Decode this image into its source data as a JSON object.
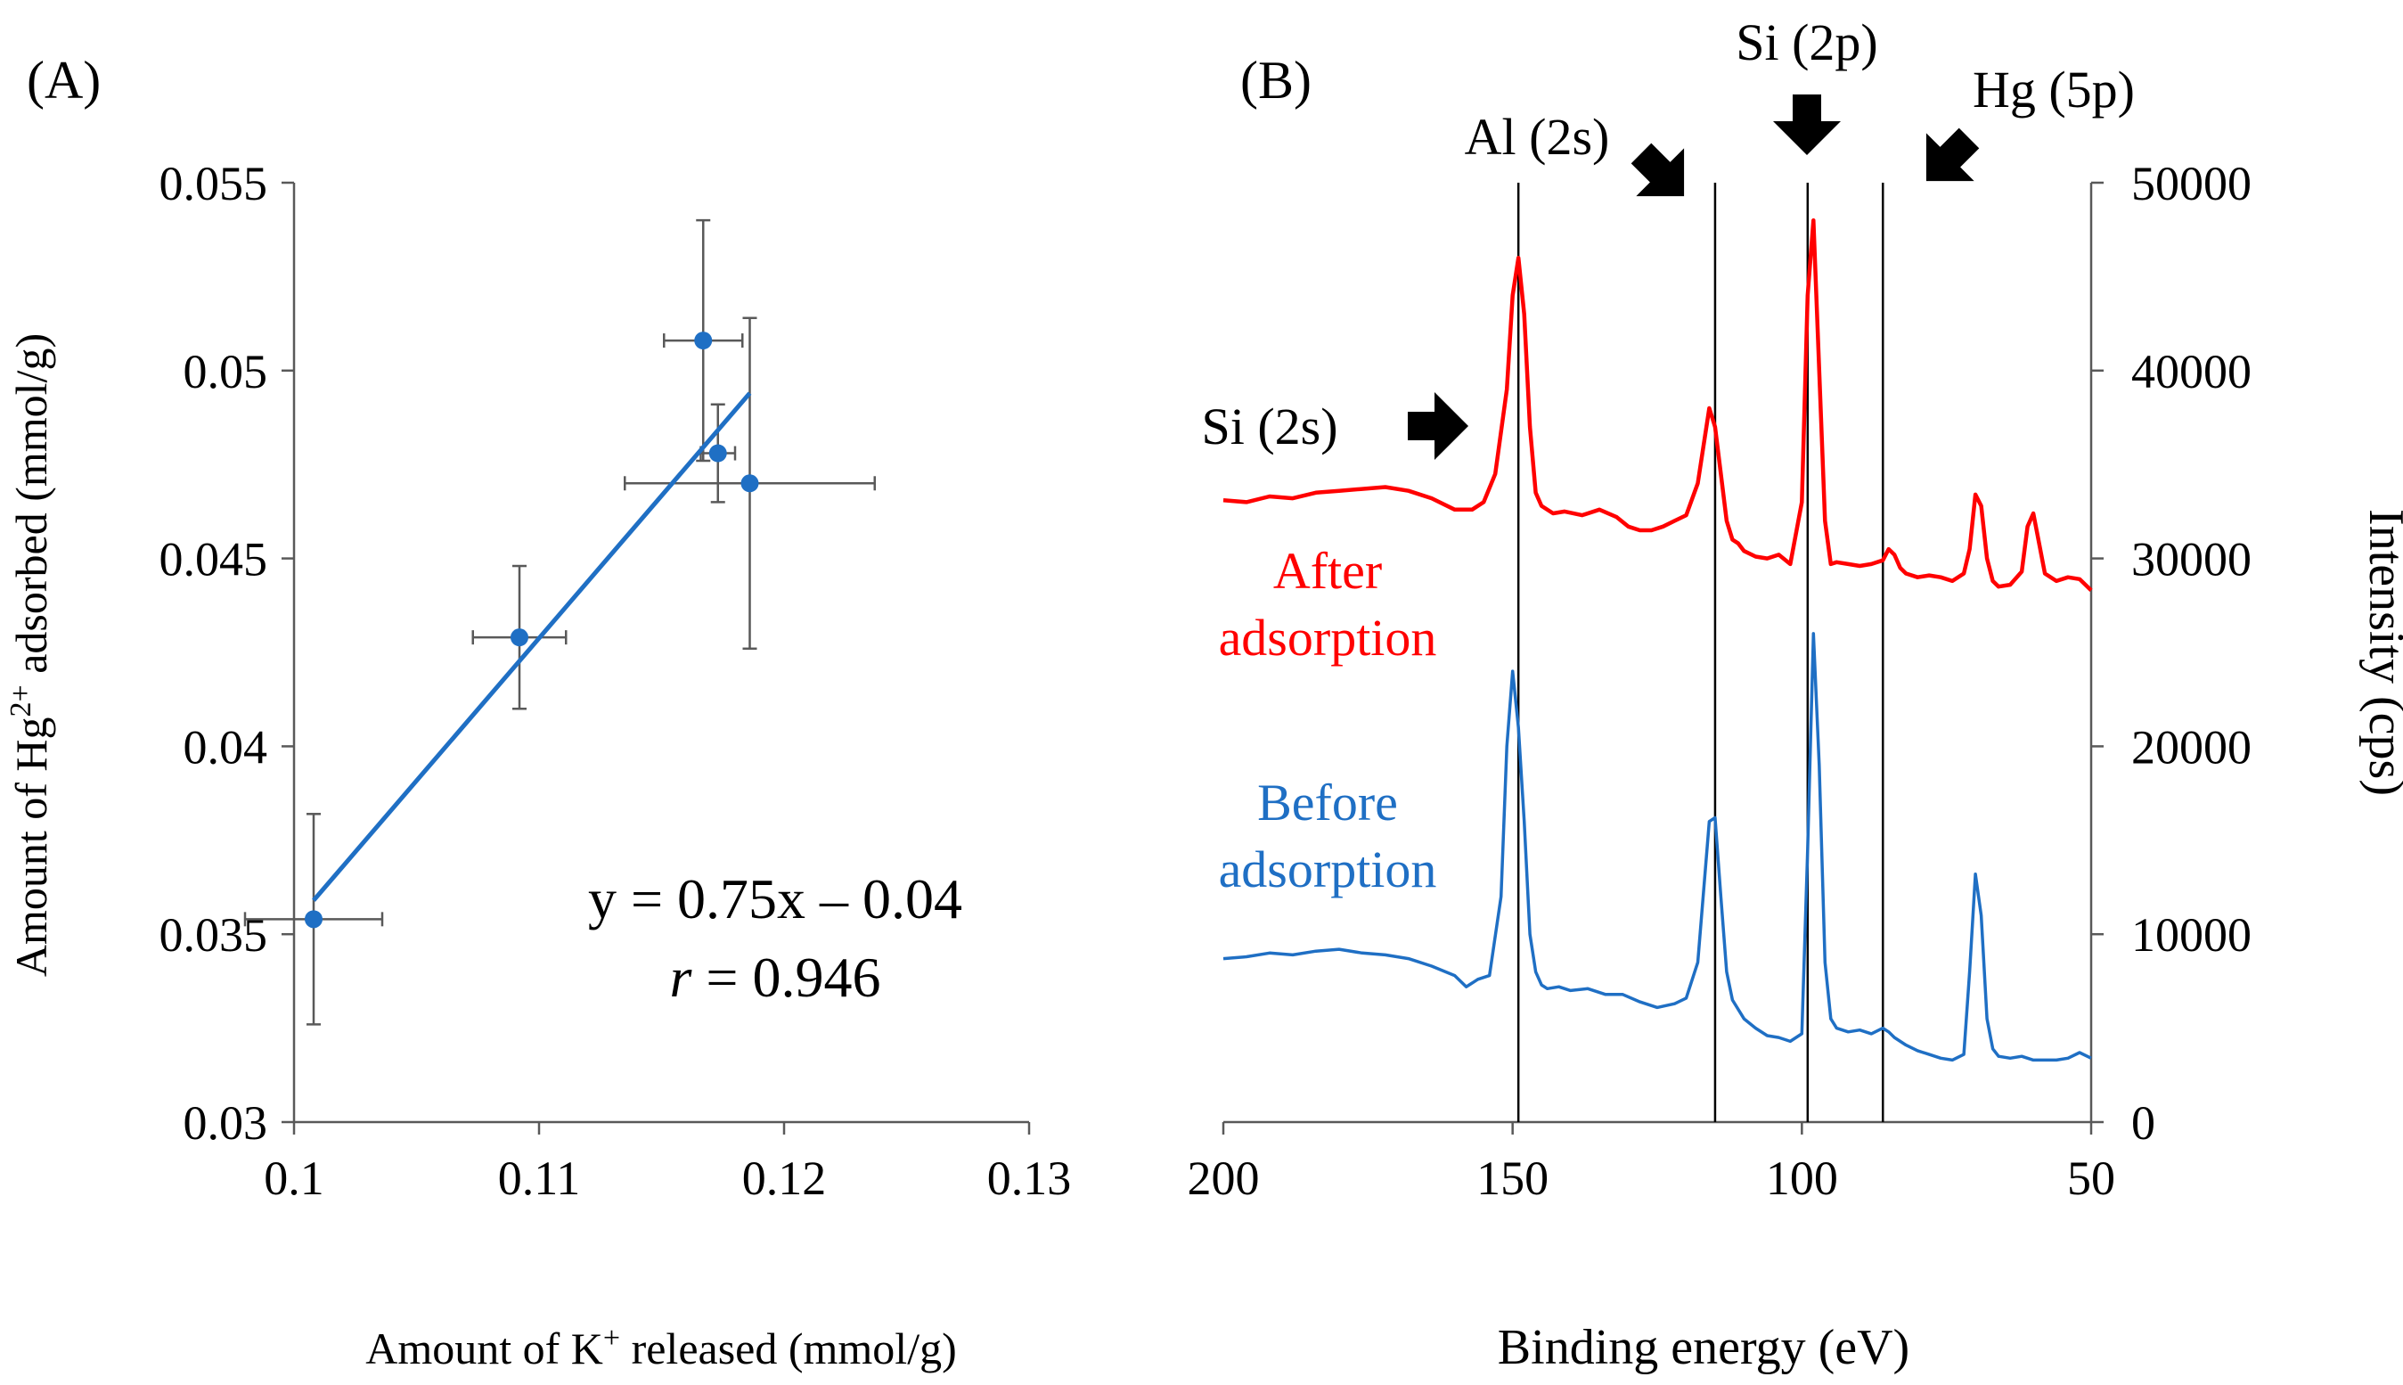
{
  "chart_data": [
    {
      "panel_label": "(A)",
      "type": "scatter",
      "xlabel_main": "Amount of K",
      "xlabel_sup": "+",
      "xlabel_rest": " released (mmol/g)",
      "ylabel_main": "Amount of Hg",
      "ylabel_sup": "2+",
      "ylabel_rest": " adsorbed (mmol/g)",
      "xlim": [
        0.1,
        0.13
      ],
      "ylim": [
        0.03,
        0.055
      ],
      "xticks": [
        "0.1",
        "0.11",
        "0.12",
        "0.13"
      ],
      "yticks": [
        "0.03",
        "0.035",
        "0.04",
        "0.045",
        "0.05",
        "0.055"
      ],
      "points": [
        {
          "x": 0.1008,
          "y": 0.0354,
          "xerr": 0.0028,
          "yerr": 0.0028
        },
        {
          "x": 0.1092,
          "y": 0.0429,
          "xerr": 0.0019,
          "yerr": 0.0019
        },
        {
          "x": 0.1167,
          "y": 0.0508,
          "xerr": 0.0016,
          "yerr": 0.0032
        },
        {
          "x": 0.1173,
          "y": 0.0478,
          "xerr": 0.0007,
          "yerr": 0.0013
        },
        {
          "x": 0.1186,
          "y": 0.047,
          "xerr": 0.0051,
          "yerr": 0.0044
        }
      ],
      "fit": {
        "x": [
          0.1008,
          0.1186
        ],
        "y": [
          0.0359,
          0.0494
        ]
      },
      "equation": "y = 0.75x – 0.04",
      "r_symbol": "r",
      "r_rest": " = 0.946",
      "marker_color": "#1f6fc4"
    },
    {
      "panel_label": "(B)",
      "type": "line",
      "xlabel": "Binding energy (eV)",
      "ylabel": "Intensity (cps)",
      "xlim": [
        200,
        50
      ],
      "ylim": [
        0,
        50000
      ],
      "xticks": [
        "200",
        "150",
        "100",
        "50"
      ],
      "yticks": [
        "0",
        "10000",
        "20000",
        "30000",
        "40000",
        "50000"
      ],
      "vlines": [
        149,
        115,
        99,
        86
      ],
      "peak_labels": [
        "Al (2s)",
        "Si (2p)",
        "Hg (5p)",
        "Si (2s)"
      ],
      "series": [
        {
          "name": "After adsorption",
          "label_lines": [
            "After",
            "adsorption"
          ],
          "color": "#ff0000",
          "x": [
            200,
            196,
            192,
            188,
            184,
            180,
            176,
            172,
            168,
            164,
            160,
            157,
            155,
            153,
            151,
            150,
            149,
            148,
            147,
            146,
            145,
            143,
            141,
            138,
            135,
            132,
            130,
            128,
            126,
            124,
            122,
            120,
            118,
            116,
            115,
            114,
            113,
            112,
            111,
            110,
            108,
            106,
            104,
            102,
            100,
            99,
            98,
            97,
            96,
            95,
            94,
            92,
            90,
            88,
            86,
            85,
            84,
            83,
            82,
            80,
            78,
            76,
            74,
            72,
            71,
            70,
            69,
            68,
            67,
            66,
            64,
            62,
            61,
            60,
            59,
            58,
            56,
            54,
            52,
            50
          ],
          "y": [
            33100,
            33000,
            33300,
            33200,
            33500,
            33600,
            33700,
            33800,
            33600,
            33200,
            32600,
            32600,
            33000,
            34500,
            39000,
            44000,
            46000,
            43000,
            37000,
            33500,
            32800,
            32400,
            32500,
            32300,
            32600,
            32200,
            31700,
            31500,
            31500,
            31700,
            32000,
            32300,
            34000,
            38000,
            37000,
            34500,
            32000,
            31000,
            30800,
            30400,
            30100,
            30000,
            30200,
            29700,
            33000,
            44000,
            48000,
            40000,
            32000,
            29700,
            29800,
            29700,
            29600,
            29700,
            29900,
            30500,
            30200,
            29500,
            29200,
            29000,
            29100,
            29000,
            28800,
            29200,
            30500,
            33400,
            32800,
            30000,
            28800,
            28500,
            28600,
            29300,
            31700,
            32400,
            30800,
            29200,
            28800,
            29000,
            28900,
            28300
          ]
        },
        {
          "name": "Before adsorption",
          "label_lines": [
            "Before",
            "adsorption"
          ],
          "color": "#1f6fc4",
          "x": [
            200,
            196,
            192,
            188,
            184,
            180,
            176,
            172,
            168,
            164,
            160,
            158,
            156,
            154,
            152,
            151,
            150,
            149,
            148,
            147,
            146,
            145,
            144,
            142,
            140,
            137,
            134,
            131,
            128,
            125,
            122,
            120,
            118,
            116,
            115,
            114,
            113,
            112,
            110,
            108,
            106,
            104,
            102,
            100,
            99,
            98,
            97,
            96,
            95,
            94,
            92,
            90,
            88,
            86,
            85,
            84,
            82,
            80,
            78,
            76,
            74,
            72,
            71,
            70,
            69,
            68,
            67,
            66,
            64,
            62,
            60,
            58,
            56,
            54,
            52,
            50
          ],
          "y": [
            8700,
            8800,
            9000,
            8900,
            9100,
            9200,
            9000,
            8900,
            8700,
            8300,
            7800,
            7200,
            7600,
            7800,
            12000,
            20000,
            24000,
            21000,
            16000,
            10000,
            8000,
            7300,
            7100,
            7200,
            7000,
            7100,
            6800,
            6800,
            6400,
            6100,
            6300,
            6600,
            8500,
            16000,
            16200,
            12000,
            8000,
            6500,
            5500,
            5000,
            4600,
            4500,
            4300,
            4700,
            14500,
            26000,
            19000,
            8500,
            5500,
            5000,
            4800,
            4900,
            4700,
            5000,
            4800,
            4500,
            4100,
            3800,
            3600,
            3400,
            3300,
            3600,
            8000,
            13200,
            11000,
            5500,
            3900,
            3500,
            3400,
            3500,
            3300,
            3300,
            3300,
            3400,
            3700,
            3400
          ]
        }
      ]
    }
  ]
}
